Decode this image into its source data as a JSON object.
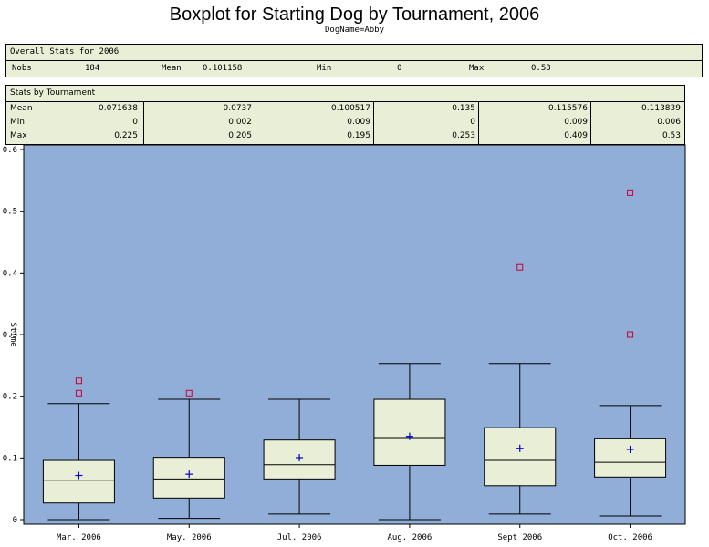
{
  "title": "Boxplot for Starting Dog by Tournament, 2006",
  "subtitle": "DogName=Abby",
  "overall": {
    "header": "Overall Stats for 2006",
    "nobs_label": "Nobs",
    "nobs": "184",
    "mean_label": "Mean",
    "mean": "0.101158",
    "min_label": "Min",
    "min": "0",
    "max_label": "Max",
    "max": "0.53"
  },
  "tournament_stats": {
    "header": "Stats by Tournament",
    "row_labels": [
      "Mean",
      "Min",
      "Max"
    ],
    "columns": [
      {
        "mean": "0.071638",
        "min": "0",
        "max": "0.225"
      },
      {
        "mean": "0.0737",
        "min": "0.002",
        "max": "0.205"
      },
      {
        "mean": "0.100517",
        "min": "0.009",
        "max": "0.195"
      },
      {
        "mean": "0.135",
        "min": "0",
        "max": "0.253"
      },
      {
        "mean": "0.115576",
        "min": "0.009",
        "max": "0.409"
      },
      {
        "mean": "0.113839",
        "min": "0.006",
        "max": "0.53"
      }
    ]
  },
  "colors": {
    "plot_bg": "#90aed8",
    "box_fill": "#e9eed6",
    "mean_marker": "#0000cc",
    "outlier": "#cc0033"
  },
  "chart_data": {
    "type": "boxplot",
    "ylabel": "Stime",
    "ylim": [
      0,
      0.6
    ],
    "yticks": [
      0,
      0.1,
      0.2,
      0.3,
      0.4,
      0.5,
      0.6
    ],
    "grid": false,
    "categories": [
      "Mar. 2006",
      "May. 2006",
      "Jul. 2006",
      "Aug. 2006",
      "Sept 2006",
      "Oct. 2006"
    ],
    "boxes": [
      {
        "whisker_low": 0.0,
        "q1": 0.027,
        "median": 0.064,
        "q3": 0.096,
        "whisker_high": 0.188,
        "mean": 0.071638,
        "outliers": [
          0.205,
          0.225
        ]
      },
      {
        "whisker_low": 0.002,
        "q1": 0.035,
        "median": 0.066,
        "q3": 0.101,
        "whisker_high": 0.195,
        "mean": 0.0737,
        "outliers": [
          0.205
        ]
      },
      {
        "whisker_low": 0.009,
        "q1": 0.066,
        "median": 0.089,
        "q3": 0.129,
        "whisker_high": 0.195,
        "mean": 0.100517,
        "outliers": []
      },
      {
        "whisker_low": 0.0,
        "q1": 0.088,
        "median": 0.133,
        "q3": 0.195,
        "whisker_high": 0.253,
        "mean": 0.135,
        "outliers": []
      },
      {
        "whisker_low": 0.009,
        "q1": 0.055,
        "median": 0.096,
        "q3": 0.149,
        "whisker_high": 0.253,
        "mean": 0.115576,
        "outliers": [
          0.409
        ]
      },
      {
        "whisker_low": 0.006,
        "q1": 0.069,
        "median": 0.093,
        "q3": 0.132,
        "whisker_high": 0.185,
        "mean": 0.113839,
        "outliers": [
          0.3,
          0.53
        ]
      }
    ]
  }
}
